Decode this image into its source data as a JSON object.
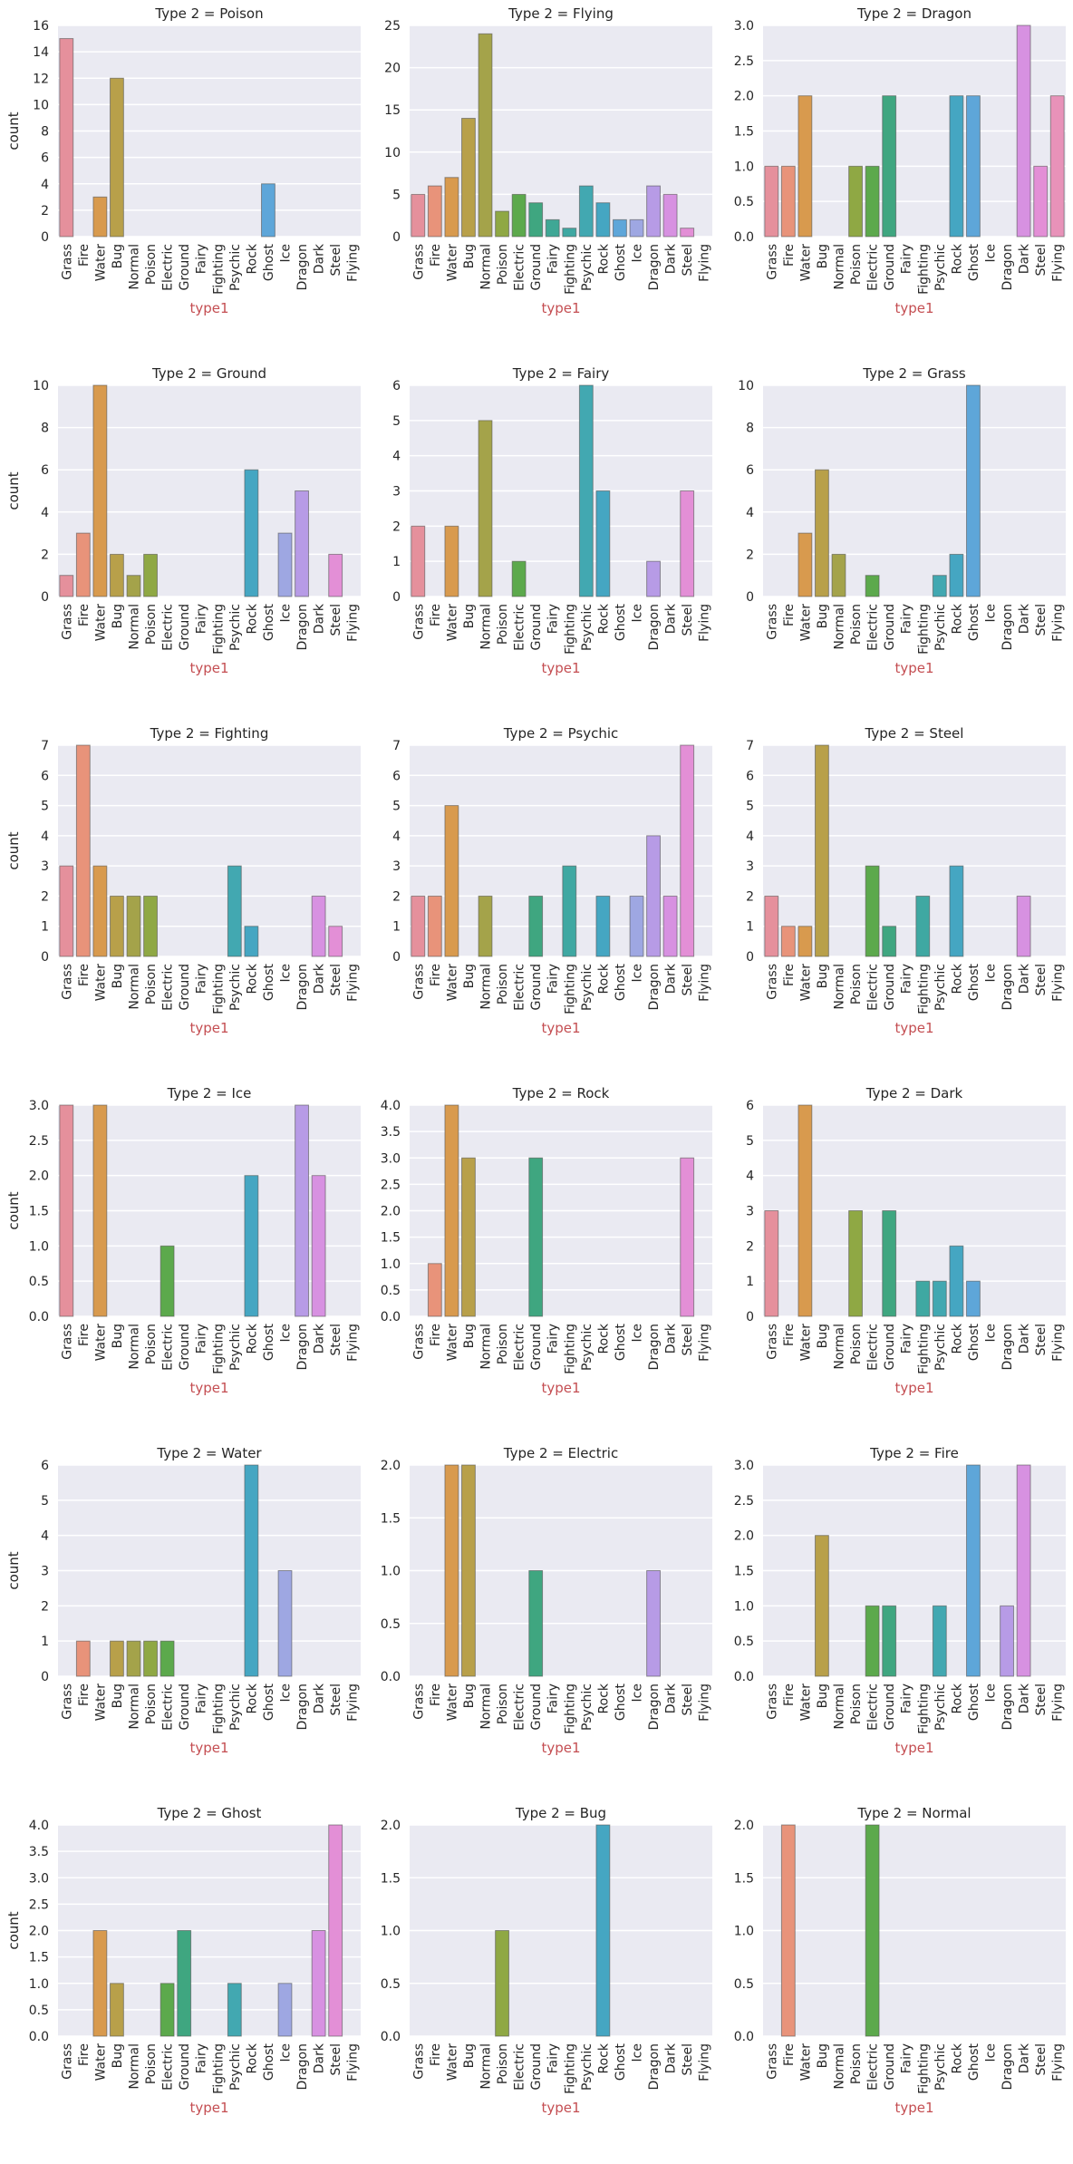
{
  "chart_data": {
    "type": "bar",
    "layout": "facet-grid 6 rows x 3 columns",
    "xlabel": "type1",
    "ylabel": "count",
    "grid": true,
    "categories": [
      "Grass",
      "Fire",
      "Water",
      "Bug",
      "Normal",
      "Poison",
      "Electric",
      "Ground",
      "Fairy",
      "Fighting",
      "Psychic",
      "Rock",
      "Ghost",
      "Ice",
      "Dragon",
      "Dark",
      "Steel",
      "Flying"
    ],
    "colors": [
      "#e5909c",
      "#e8937a",
      "#d89a4e",
      "#b8a04a",
      "#a4a34a",
      "#8fa844",
      "#5ca94c",
      "#3fa680",
      "#3fa795",
      "#3fa8a2",
      "#42a8b1",
      "#45a6c2",
      "#5ea6d9",
      "#9ea7e2",
      "#b79be6",
      "#d791e1",
      "#e38fd6",
      "#e892b9"
    ],
    "panels": [
      {
        "title": "Type 2 = Poison",
        "ylim": [
          0,
          16
        ],
        "yticks": [
          0,
          2,
          4,
          6,
          8,
          10,
          12,
          14,
          16
        ],
        "ytick_labels": [
          "0",
          "2",
          "4",
          "6",
          "8",
          "10",
          "12",
          "14",
          "16"
        ],
        "values": [
          15,
          0,
          3,
          12,
          0,
          0,
          0,
          0,
          0,
          0,
          0,
          0,
          4,
          0,
          0,
          0,
          0,
          0
        ]
      },
      {
        "title": "Type 2 = Flying",
        "ylim": [
          0,
          25
        ],
        "yticks": [
          0,
          5,
          10,
          15,
          20,
          25
        ],
        "ytick_labels": [
          "0",
          "5",
          "10",
          "15",
          "20",
          "25"
        ],
        "values": [
          5,
          6,
          7,
          14,
          24,
          3,
          5,
          4,
          2,
          1,
          6,
          4,
          2,
          2,
          6,
          5,
          1,
          0
        ]
      },
      {
        "title": "Type 2 = Dragon",
        "ylim": [
          0,
          3
        ],
        "yticks": [
          0,
          0.5,
          1,
          1.5,
          2,
          2.5,
          3
        ],
        "ytick_labels": [
          "0.0",
          "0.5",
          "1.0",
          "1.5",
          "2.0",
          "2.5",
          "3.0"
        ],
        "values": [
          1,
          1,
          2,
          0,
          0,
          1,
          1,
          2,
          0,
          0,
          0,
          2,
          2,
          0,
          0,
          3,
          1,
          2
        ]
      },
      {
        "title": "Type 2 = Ground",
        "ylim": [
          0,
          10
        ],
        "yticks": [
          0,
          2,
          4,
          6,
          8,
          10
        ],
        "ytick_labels": [
          "0",
          "2",
          "4",
          "6",
          "8",
          "10"
        ],
        "values": [
          1,
          3,
          10,
          2,
          1,
          2,
          0,
          0,
          0,
          0,
          0,
          6,
          0,
          3,
          5,
          0,
          2,
          0
        ]
      },
      {
        "title": "Type 2 = Fairy",
        "ylim": [
          0,
          6
        ],
        "yticks": [
          0,
          1,
          2,
          3,
          4,
          5,
          6
        ],
        "ytick_labels": [
          "0",
          "1",
          "2",
          "3",
          "4",
          "5",
          "6"
        ],
        "values": [
          2,
          0,
          2,
          0,
          5,
          0,
          1,
          0,
          0,
          0,
          6,
          3,
          0,
          0,
          1,
          0,
          3,
          0
        ]
      },
      {
        "title": "Type 2 = Grass",
        "ylim": [
          0,
          10
        ],
        "yticks": [
          0,
          2,
          4,
          6,
          8,
          10
        ],
        "ytick_labels": [
          "0",
          "2",
          "4",
          "6",
          "8",
          "10"
        ],
        "values": [
          0,
          0,
          3,
          6,
          2,
          0,
          1,
          0,
          0,
          0,
          1,
          2,
          10,
          0,
          0,
          0,
          0,
          0
        ]
      },
      {
        "title": "Type 2 = Fighting",
        "ylim": [
          0,
          7
        ],
        "yticks": [
          0,
          1,
          2,
          3,
          4,
          5,
          6,
          7
        ],
        "ytick_labels": [
          "0",
          "1",
          "2",
          "3",
          "4",
          "5",
          "6",
          "7"
        ],
        "values": [
          3,
          7,
          3,
          2,
          2,
          2,
          0,
          0,
          0,
          0,
          3,
          1,
          0,
          0,
          0,
          2,
          1,
          0
        ]
      },
      {
        "title": "Type 2 = Psychic",
        "ylim": [
          0,
          7
        ],
        "yticks": [
          0,
          1,
          2,
          3,
          4,
          5,
          6,
          7
        ],
        "ytick_labels": [
          "0",
          "1",
          "2",
          "3",
          "4",
          "5",
          "6",
          "7"
        ],
        "values": [
          2,
          2,
          5,
          0,
          2,
          0,
          0,
          2,
          0,
          3,
          0,
          2,
          0,
          2,
          4,
          2,
          7,
          0
        ]
      },
      {
        "title": "Type 2 = Steel",
        "ylim": [
          0,
          7
        ],
        "yticks": [
          0,
          1,
          2,
          3,
          4,
          5,
          6,
          7
        ],
        "ytick_labels": [
          "0",
          "1",
          "2",
          "3",
          "4",
          "5",
          "6",
          "7"
        ],
        "values": [
          2,
          1,
          1,
          7,
          0,
          0,
          3,
          1,
          0,
          2,
          0,
          3,
          0,
          0,
          0,
          2,
          0,
          0
        ]
      },
      {
        "title": "Type 2 = Ice",
        "ylim": [
          0,
          3
        ],
        "yticks": [
          0,
          0.5,
          1,
          1.5,
          2,
          2.5,
          3
        ],
        "ytick_labels": [
          "0.0",
          "0.5",
          "1.0",
          "1.5",
          "2.0",
          "2.5",
          "3.0"
        ],
        "values": [
          3,
          0,
          3,
          0,
          0,
          0,
          1,
          0,
          0,
          0,
          0,
          2,
          0,
          0,
          3,
          2,
          0,
          0
        ]
      },
      {
        "title": "Type 2 = Rock",
        "ylim": [
          0,
          4
        ],
        "yticks": [
          0,
          0.5,
          1,
          1.5,
          2,
          2.5,
          3,
          3.5,
          4
        ],
        "ytick_labels": [
          "0.0",
          "0.5",
          "1.0",
          "1.5",
          "2.0",
          "2.5",
          "3.0",
          "3.5",
          "4.0"
        ],
        "values": [
          0,
          1,
          4,
          3,
          0,
          0,
          0,
          3,
          0,
          0,
          0,
          0,
          0,
          0,
          0,
          0,
          3,
          0
        ]
      },
      {
        "title": "Type 2 = Dark",
        "ylim": [
          0,
          6
        ],
        "yticks": [
          0,
          1,
          2,
          3,
          4,
          5,
          6
        ],
        "ytick_labels": [
          "0",
          "1",
          "2",
          "3",
          "4",
          "5",
          "6"
        ],
        "values": [
          3,
          0,
          6,
          0,
          0,
          3,
          0,
          3,
          0,
          1,
          1,
          2,
          1,
          0,
          0,
          0,
          0,
          0
        ]
      },
      {
        "title": "Type 2 = Water",
        "ylim": [
          0,
          6
        ],
        "yticks": [
          0,
          1,
          2,
          3,
          4,
          5,
          6
        ],
        "ytick_labels": [
          "0",
          "1",
          "2",
          "3",
          "4",
          "5",
          "6"
        ],
        "values": [
          0,
          1,
          0,
          1,
          1,
          1,
          1,
          0,
          0,
          0,
          0,
          6,
          0,
          3,
          0,
          0,
          0,
          0
        ]
      },
      {
        "title": "Type 2 = Electric",
        "ylim": [
          0,
          2
        ],
        "yticks": [
          0,
          0.5,
          1,
          1.5,
          2
        ],
        "ytick_labels": [
          "0.0",
          "0.5",
          "1.0",
          "1.5",
          "2.0"
        ],
        "values": [
          0,
          0,
          2,
          2,
          0,
          0,
          0,
          1,
          0,
          0,
          0,
          0,
          0,
          0,
          1,
          0,
          0,
          0
        ]
      },
      {
        "title": "Type 2 = Fire",
        "ylim": [
          0,
          3
        ],
        "yticks": [
          0,
          0.5,
          1,
          1.5,
          2,
          2.5,
          3
        ],
        "ytick_labels": [
          "0.0",
          "0.5",
          "1.0",
          "1.5",
          "2.0",
          "2.5",
          "3.0"
        ],
        "values": [
          0,
          0,
          0,
          2,
          0,
          0,
          1,
          1,
          0,
          0,
          1,
          0,
          3,
          0,
          1,
          3,
          0,
          0
        ]
      },
      {
        "title": "Type 2 = Ghost",
        "ylim": [
          0,
          4
        ],
        "yticks": [
          0,
          0.5,
          1,
          1.5,
          2,
          2.5,
          3,
          3.5,
          4
        ],
        "ytick_labels": [
          "0.0",
          "0.5",
          "1.0",
          "1.5",
          "2.0",
          "2.5",
          "3.0",
          "3.5",
          "4.0"
        ],
        "values": [
          0,
          0,
          2,
          1,
          0,
          0,
          1,
          2,
          0,
          0,
          1,
          0,
          0,
          1,
          0,
          2,
          4,
          0
        ]
      },
      {
        "title": "Type 2 = Bug",
        "ylim": [
          0,
          2
        ],
        "yticks": [
          0,
          0.5,
          1,
          1.5,
          2
        ],
        "ytick_labels": [
          "0.0",
          "0.5",
          "1.0",
          "1.5",
          "2.0"
        ],
        "values": [
          0,
          0,
          0,
          0,
          0,
          1,
          0,
          0,
          0,
          0,
          0,
          2,
          0,
          0,
          0,
          0,
          0,
          0
        ]
      },
      {
        "title": "Type 2 = Normal",
        "ylim": [
          0,
          2
        ],
        "yticks": [
          0,
          0.5,
          1,
          1.5,
          2
        ],
        "ytick_labels": [
          "0.0",
          "0.5",
          "1.0",
          "1.5",
          "2.0"
        ],
        "values": [
          0,
          2,
          0,
          0,
          0,
          0,
          2,
          0,
          0,
          0,
          0,
          0,
          0,
          0,
          0,
          0,
          0,
          0
        ]
      }
    ]
  }
}
